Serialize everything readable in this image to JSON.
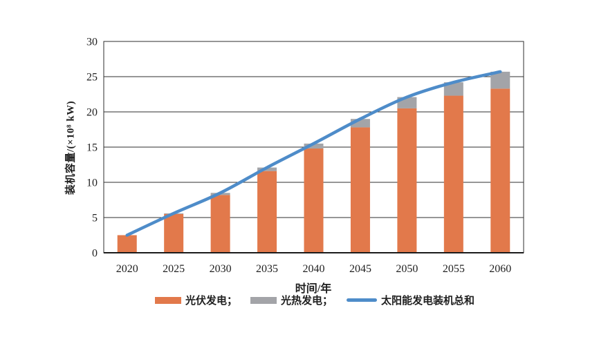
{
  "chart_data": {
    "type": "bar",
    "subtype": "stacked-bars-with-line-overlay",
    "categories": [
      "2020",
      "2025",
      "2030",
      "2035",
      "2040",
      "2045",
      "2050",
      "2055",
      "2060"
    ],
    "series": [
      {
        "name": "光伏发电",
        "type": "bar",
        "color": "#E2794B",
        "values": [
          2.5,
          5.5,
          8.2,
          11.6,
          14.8,
          17.8,
          20.5,
          22.3,
          23.3
        ]
      },
      {
        "name": "光热发电",
        "type": "bar",
        "color": "#A3A4A8",
        "values": [
          0,
          0.1,
          0.3,
          0.5,
          0.7,
          1.2,
          1.6,
          1.9,
          2.4
        ]
      },
      {
        "name": "太阳能发电装机总和",
        "type": "line",
        "color": "#4E8CC9",
        "values": [
          2.5,
          5.6,
          8.5,
          12.1,
          15.5,
          19.0,
          22.1,
          24.2,
          25.7
        ]
      }
    ],
    "xlabel": "时间/年",
    "ylabel": "装机容量/(×10⁸ kW)",
    "ylim": [
      0,
      30
    ],
    "yticks": [
      0,
      5,
      10,
      15,
      20,
      25,
      30
    ],
    "grid": "horizontal",
    "plot_border": true,
    "legend_position": "bottom",
    "legend": [
      {
        "label": "光伏发电；",
        "swatch": "bar",
        "color": "#E2794B"
      },
      {
        "label": "光热发电；",
        "swatch": "bar",
        "color": "#A3A4A8"
      },
      {
        "label": "太阳能发电装机总和",
        "swatch": "line",
        "color": "#4E8CC9"
      }
    ],
    "axis_color": "#2e2e2e",
    "text_color": "#1f1f1f"
  }
}
